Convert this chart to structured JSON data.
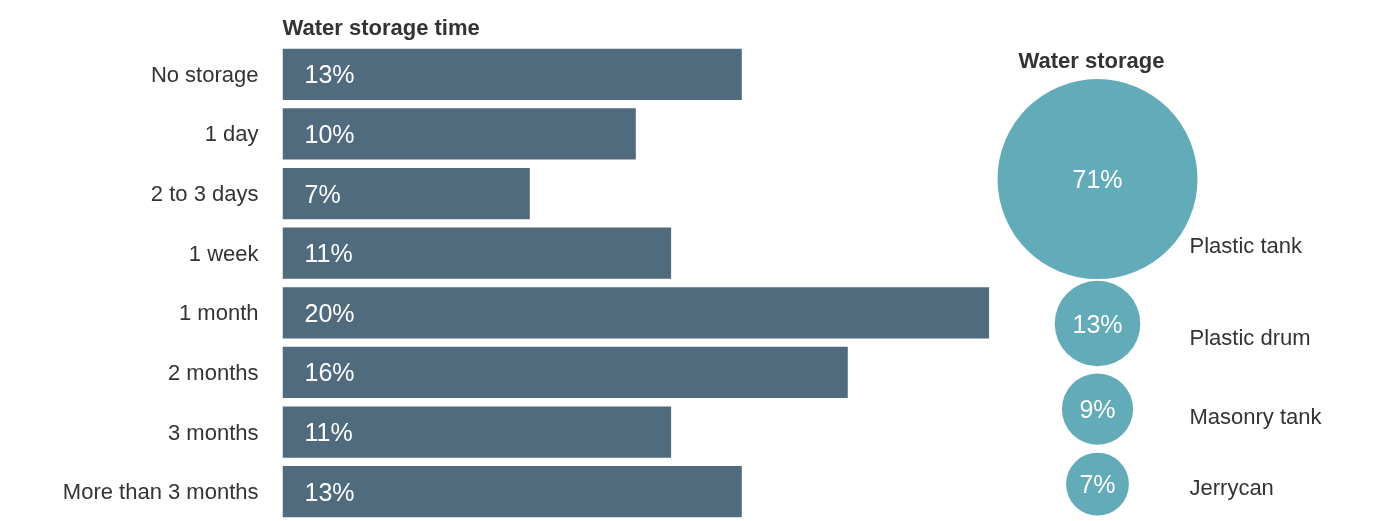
{
  "chart_data": [
    {
      "type": "bar",
      "orientation": "horizontal",
      "title": "Water storage time",
      "categories": [
        "No storage",
        "1 day",
        "2 to 3 days",
        "1 week",
        "1 month",
        "2 months",
        "3 months",
        "More than 3 months"
      ],
      "values": [
        13,
        10,
        7,
        11,
        20,
        16,
        11,
        13
      ],
      "value_labels": [
        "13%",
        "10%",
        "7%",
        "11%",
        "20%",
        "16%",
        "11%",
        "13%"
      ],
      "color": "#506a7e",
      "tick_labels": "y"
    },
    {
      "type": "other",
      "title": "Water storage",
      "categories": [
        "Plastic tank",
        "Plastic drum",
        "Masonry tank",
        "Jerrycan"
      ],
      "values": [
        71,
        13,
        9,
        7
      ],
      "value_labels": [
        "71%",
        "13%",
        "9%",
        "7%"
      ],
      "color": "#62abb8"
    }
  ]
}
